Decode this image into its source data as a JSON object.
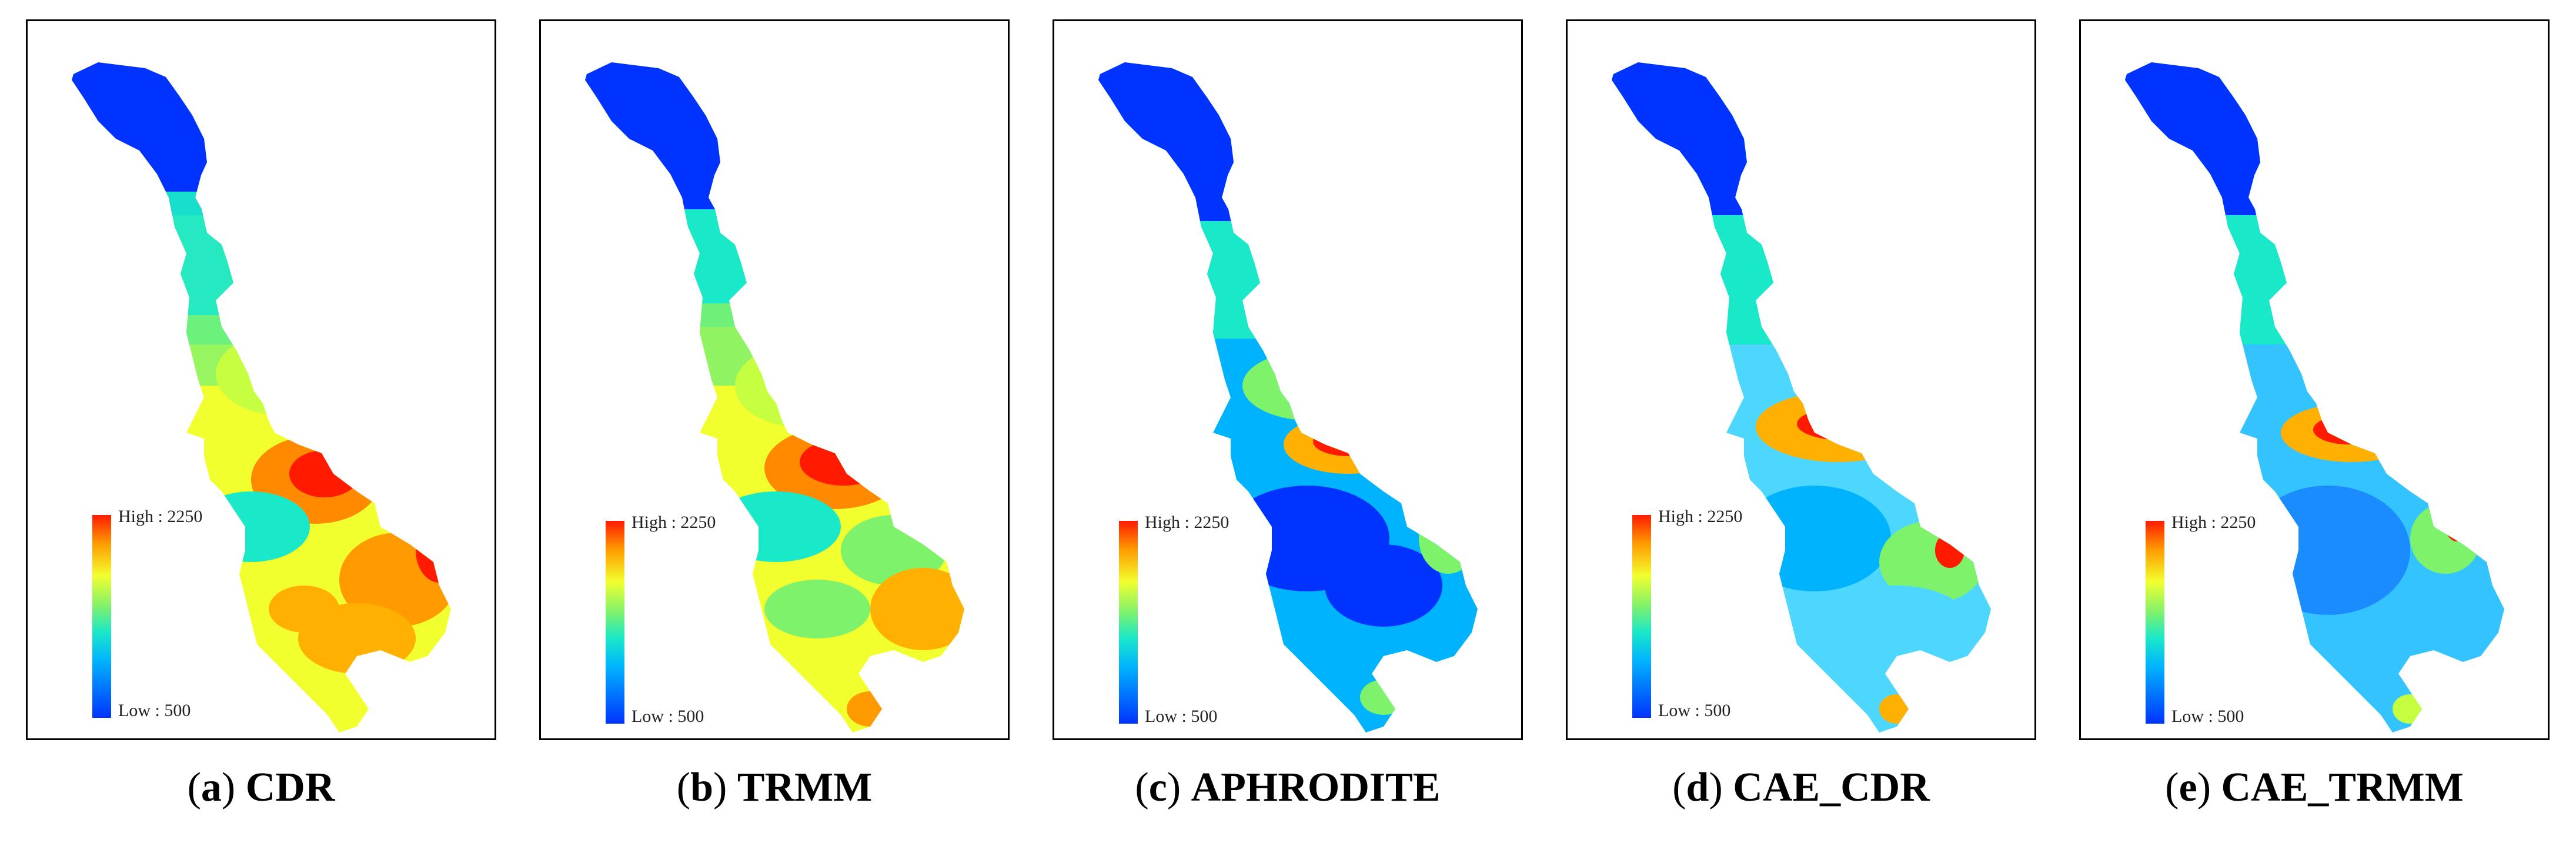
{
  "panels": [
    {
      "letter": "a",
      "name": "CDR",
      "legend_high": "High : 2250",
      "legend_low": "Low : 500"
    },
    {
      "letter": "b",
      "name": "TRMM",
      "legend_high": "High : 2250",
      "legend_low": "Low : 500"
    },
    {
      "letter": "c",
      "name": "APHRODITE",
      "legend_high": "High : 2250",
      "legend_low": "Low : 500"
    },
    {
      "letter": "d",
      "name": "CAE_CDR",
      "legend_high": "High : 2250",
      "legend_low": "Low : 500"
    },
    {
      "letter": "e",
      "name": "CAE_TRMM",
      "legend_high": "High : 2250",
      "legend_low": "Low : 500"
    }
  ],
  "colors": {
    "high": "#ff1a00",
    "mid_high": "#ffb000",
    "mid": "#f2ff2e",
    "mid_low": "#19e8c9",
    "low": "#0033ff"
  }
}
